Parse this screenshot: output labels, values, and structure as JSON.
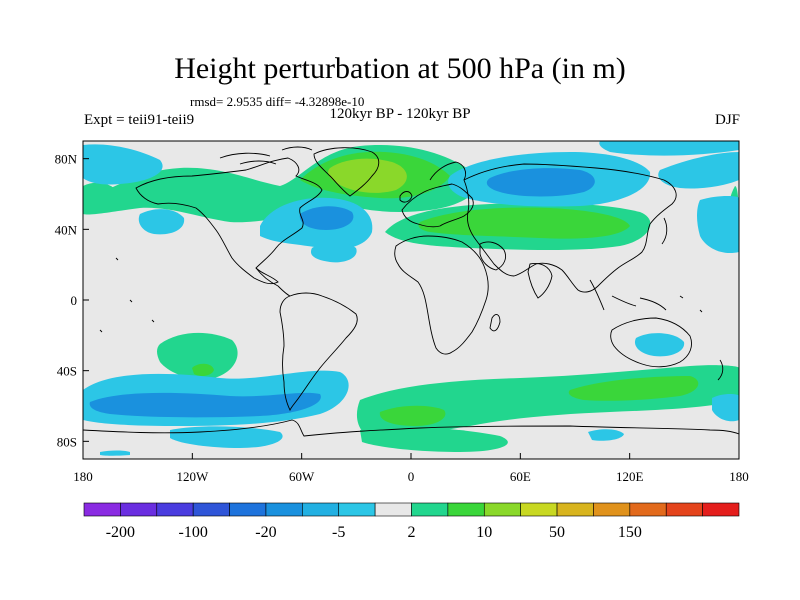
{
  "title": "Height perturbation at 500 hPa (in m)",
  "stats": "rmsd= 2.9535 diff= -4.32898e-10",
  "experiment": "Expt = teii91-teii9",
  "period": "120kyr BP - 120kyr BP",
  "season": "DJF",
  "axes": {
    "x_ticks": [
      {
        "lon": -180,
        "label": "180"
      },
      {
        "lon": -120,
        "label": "120W"
      },
      {
        "lon": -60,
        "label": "60W"
      },
      {
        "lon": 0,
        "label": "0"
      },
      {
        "lon": 60,
        "label": "60E"
      },
      {
        "lon": 120,
        "label": "120E"
      },
      {
        "lon": 180,
        "label": "180"
      }
    ],
    "y_ticks": [
      {
        "lat": 80,
        "label": "80N"
      },
      {
        "lat": 40,
        "label": "40N"
      },
      {
        "lat": 0,
        "label": "0"
      },
      {
        "lat": -40,
        "label": "40S"
      },
      {
        "lat": -80,
        "label": "80S"
      }
    ],
    "lon_range": [
      -180,
      180
    ],
    "lat_range": [
      -90,
      90
    ]
  },
  "colorbar": {
    "colors": [
      "#8a2be2",
      "#6a2ee0",
      "#4a3cdf",
      "#2f55d8",
      "#1e73dc",
      "#1a91de",
      "#22b0e2",
      "#2cc6e6",
      "#e8e8e8",
      "#22d68e",
      "#3ad63a",
      "#8ad82a",
      "#c8d822",
      "#d8b41e",
      "#e0921c",
      "#e26a1c",
      "#e4441c",
      "#e41e1c"
    ],
    "labels": [
      {
        "index": 1,
        "text": "-200"
      },
      {
        "index": 3,
        "text": "-100"
      },
      {
        "index": 5,
        "text": "-20"
      },
      {
        "index": 7,
        "text": "-5"
      },
      {
        "index": 9,
        "text": "2"
      },
      {
        "index": 11,
        "text": "10"
      },
      {
        "index": 13,
        "text": "50"
      },
      {
        "index": 15,
        "text": "150"
      }
    ]
  },
  "colors": {
    "background": "#e8e8e8",
    "cyan": "#2cc6e6",
    "light_blue": "#22b0e2",
    "blue": "#1a91de",
    "green_teal": "#22d68e",
    "green": "#3ad63a",
    "yellow_green": "#8ad82a"
  }
}
